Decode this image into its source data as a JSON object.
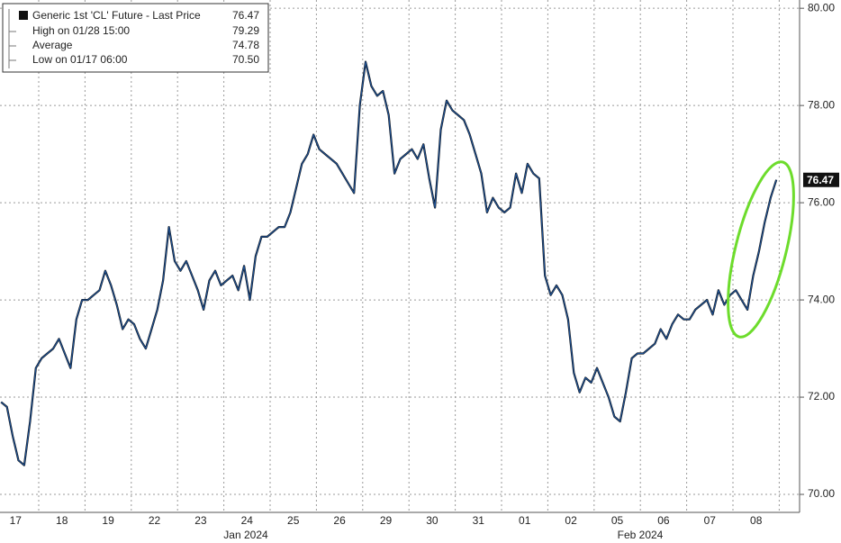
{
  "chart_data": {
    "type": "line",
    "title": "Generic 1st 'CL' Future - Last Price",
    "last_price": {
      "value": 76.47,
      "label": "76.47"
    },
    "stats": [
      {
        "name": "High on 01/28 15:00",
        "value": 79.29,
        "label": "79.29"
      },
      {
        "name": "Average",
        "value": 74.78,
        "label": "74.78"
      },
      {
        "name": "Low on 01/17 06:00",
        "value": 70.5,
        "label": "70.50"
      }
    ],
    "month_labels": [
      "Jan 2024",
      "Feb 2024"
    ],
    "categories": [
      null,
      null,
      null,
      "17",
      null,
      null,
      null,
      null,
      null,
      null,
      null,
      "18",
      null,
      null,
      null,
      null,
      null,
      null,
      null,
      "19",
      null,
      null,
      null,
      null,
      null,
      null,
      null,
      "22",
      null,
      null,
      null,
      null,
      null,
      null,
      null,
      "23",
      null,
      null,
      null,
      null,
      null,
      null,
      null,
      "24",
      null,
      null,
      null,
      null,
      null,
      null,
      null,
      "25",
      null,
      null,
      null,
      null,
      null,
      null,
      null,
      "26",
      null,
      null,
      null,
      null,
      null,
      null,
      null,
      "29",
      null,
      null,
      null,
      null,
      null,
      null,
      null,
      "30",
      null,
      null,
      null,
      null,
      null,
      null,
      null,
      "31",
      null,
      null,
      null,
      null,
      null,
      null,
      null,
      "01",
      null,
      null,
      null,
      null,
      null,
      null,
      null,
      "02",
      null,
      null,
      null,
      null,
      null,
      null,
      null,
      "05",
      null,
      null,
      null,
      null,
      null,
      null,
      null,
      "06",
      null,
      null,
      null,
      null,
      null,
      null,
      null,
      "07",
      null,
      null,
      null,
      null,
      null,
      null,
      null,
      "08",
      null,
      null,
      null
    ],
    "series": [
      {
        "name": "Last Price",
        "color": "#1d4f91",
        "values": [
          71.9,
          71.8,
          71.2,
          70.7,
          70.6,
          71.5,
          72.6,
          72.8,
          72.9,
          73.0,
          73.2,
          72.9,
          72.6,
          73.6,
          74.0,
          74.0,
          74.1,
          74.2,
          74.6,
          74.3,
          73.9,
          73.4,
          73.6,
          73.5,
          73.2,
          73.0,
          73.4,
          73.8,
          74.4,
          75.5,
          74.8,
          74.6,
          74.8,
          74.5,
          74.2,
          73.8,
          74.4,
          74.6,
          74.3,
          74.4,
          74.5,
          74.2,
          74.7,
          74.0,
          74.9,
          75.3,
          75.3,
          75.4,
          75.5,
          75.5,
          75.8,
          76.3,
          76.8,
          77.0,
          77.4,
          77.1,
          77.0,
          76.9,
          76.8,
          76.6,
          76.4,
          76.2,
          78.0,
          78.9,
          78.4,
          78.2,
          78.3,
          77.8,
          76.6,
          76.9,
          77.0,
          77.1,
          76.9,
          77.2,
          76.5,
          75.9,
          77.5,
          78.1,
          77.9,
          77.8,
          77.7,
          77.4,
          77.0,
          76.6,
          75.8,
          76.1,
          75.9,
          75.8,
          75.9,
          76.6,
          76.2,
          76.8,
          76.6,
          76.5,
          74.5,
          74.1,
          74.3,
          74.1,
          73.6,
          72.5,
          72.1,
          72.4,
          72.3,
          72.6,
          72.3,
          72.0,
          71.6,
          71.5,
          72.1,
          72.8,
          72.9,
          72.9,
          73.0,
          73.1,
          73.4,
          73.2,
          73.5,
          73.7,
          73.6,
          73.6,
          73.8,
          73.9,
          74.0,
          73.7,
          74.2,
          73.9,
          74.1,
          74.2,
          74.0,
          73.8,
          74.5,
          75.0,
          75.6,
          76.1,
          76.47
        ]
      }
    ],
    "ylim": [
      69.63,
      80.17
    ],
    "yticks": [
      {
        "value": 70,
        "label": "70.00"
      },
      {
        "value": 72,
        "label": "72.00"
      },
      {
        "value": 74,
        "label": "74.00"
      },
      {
        "value": 76,
        "label": "76.00"
      },
      {
        "value": 78,
        "label": "78.00"
      },
      {
        "value": 80,
        "label": "80.00"
      }
    ],
    "grid": true
  }
}
